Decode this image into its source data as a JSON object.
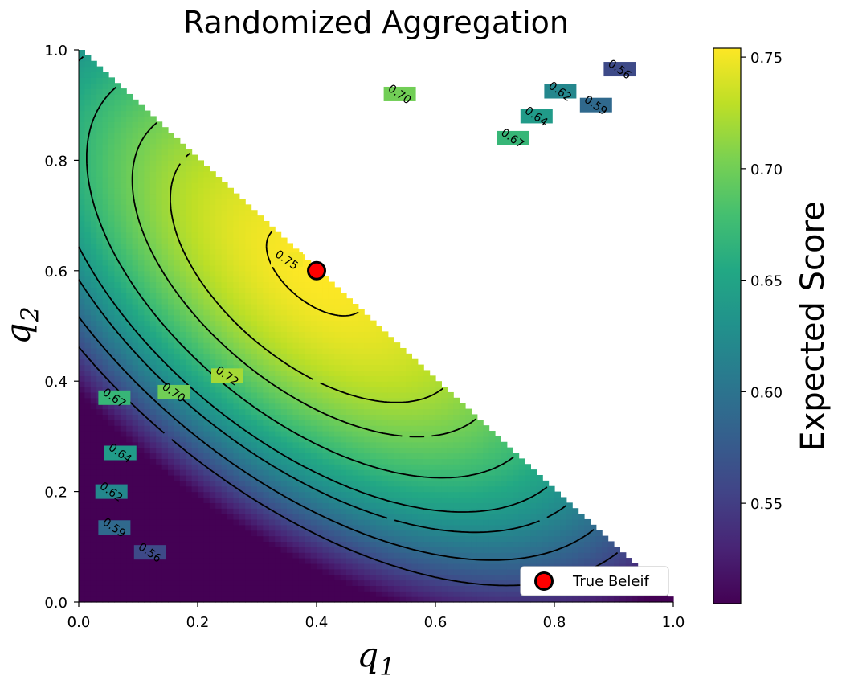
{
  "chart_data": {
    "type": "heatmap",
    "title": "Randomized Aggregation",
    "xlabel": "q",
    "xlabel_sub": "1",
    "ylabel": "q",
    "ylabel_sub": "2",
    "xlim": [
      0,
      1
    ],
    "ylim": [
      0,
      1
    ],
    "x_ticks": [
      "0.0",
      "0.2",
      "0.4",
      "0.6",
      "0.8",
      "1.0"
    ],
    "y_ticks": [
      "0.0",
      "0.2",
      "0.4",
      "0.6",
      "0.8",
      "1.0"
    ],
    "domain": "q1 + q2 <= 1",
    "peak": {
      "q1": 0.4,
      "q2": 0.6,
      "value": 0.754
    },
    "min_value": 0.505,
    "colorbar": {
      "label": "Expected Score",
      "colormap": "viridis",
      "range": [
        0.505,
        0.754
      ],
      "ticks": [
        "0.55",
        "0.60",
        "0.65",
        "0.70",
        "0.75"
      ]
    },
    "contour_levels": [
      "0.56",
      "0.59",
      "0.62",
      "0.64",
      "0.67",
      "0.70",
      "0.72",
      "0.75"
    ],
    "legend": {
      "entries": [
        "True Beleif"
      ],
      "position": "lower-right"
    },
    "marker": {
      "label": "True Beleif",
      "q1": 0.4,
      "q2": 0.6,
      "color": "#ff0000"
    },
    "grid": false
  }
}
